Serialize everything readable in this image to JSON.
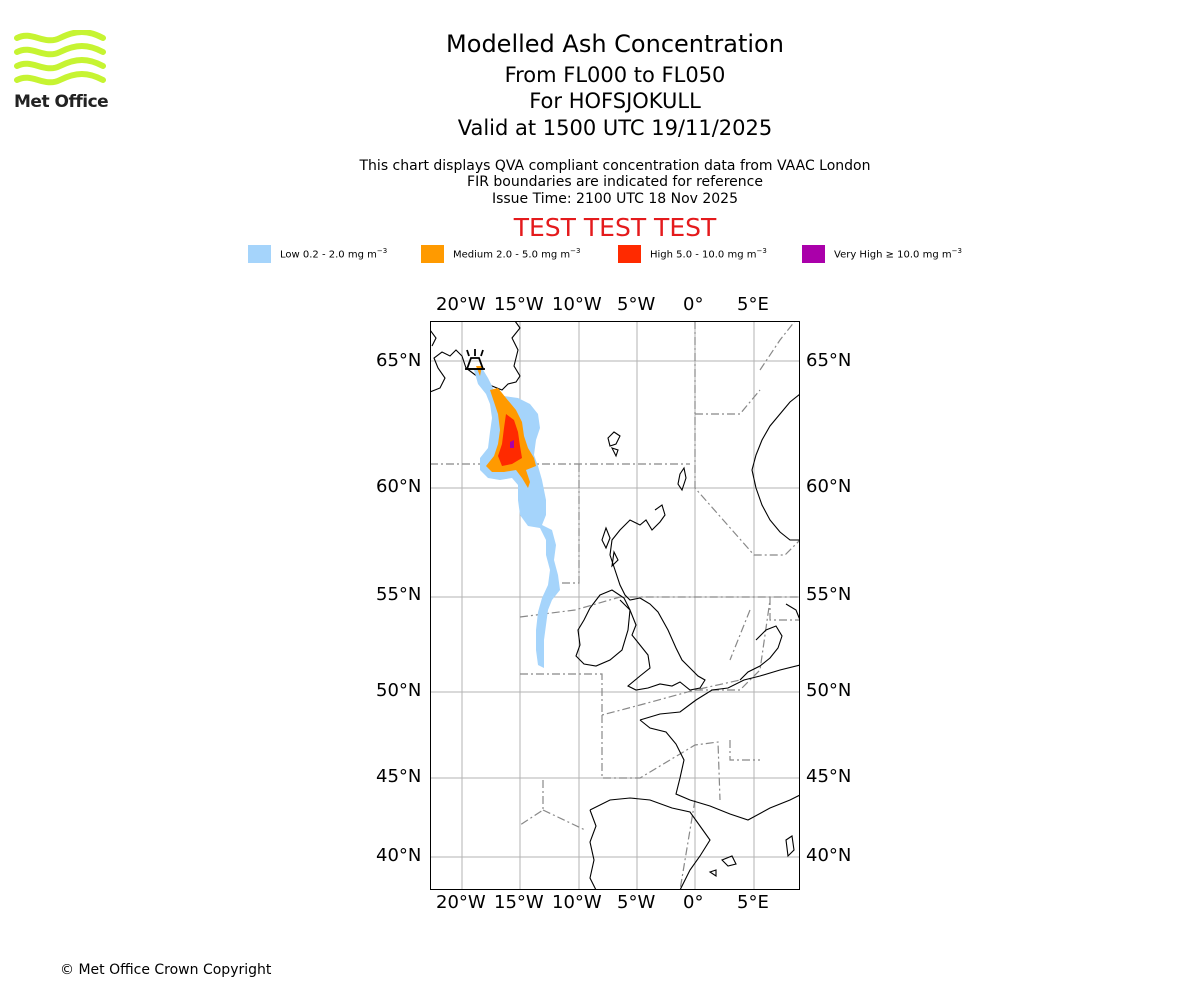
{
  "brand": {
    "name": "Met Office",
    "logo_color": "#c6f432"
  },
  "title": {
    "line1": "Modelled Ash Concentration",
    "line2": "From FL000 to FL050",
    "line3": "For HOFSJOKULL",
    "line4": "Valid at 1500 UTC 19/11/2025"
  },
  "subtitle": {
    "line1": "This chart displays QVA compliant concentration data from VAAC London",
    "line2": "FIR boundaries are indicated for reference",
    "line3": "Issue Time: 2100 UTC 18 Nov 2025"
  },
  "test_banner": "TEST TEST TEST",
  "legend": [
    {
      "label": "Low 0.2 - 2.0 mg m",
      "unit_sup": "−3",
      "color": "#a5d4fb"
    },
    {
      "label": "Medium 2.0 - 5.0 mg m",
      "unit_sup": "−3",
      "color": "#ff9a00"
    },
    {
      "label": "High 5.0 - 10.0 mg m",
      "unit_sup": "−3",
      "color": "#ff2a00"
    },
    {
      "label": "Very High  ≥  10.0 mg m",
      "unit_sup": "−3",
      "color": "#aa00aa"
    }
  ],
  "map": {
    "lon_labels": [
      "20°W",
      "15°W",
      "10°W",
      "5°W",
      "0°",
      "5°E"
    ],
    "lat_labels": [
      "65°N",
      "60°N",
      "55°N",
      "50°N",
      "45°N",
      "40°N"
    ]
  },
  "copyright": "© Met Office Crown Copyright"
}
